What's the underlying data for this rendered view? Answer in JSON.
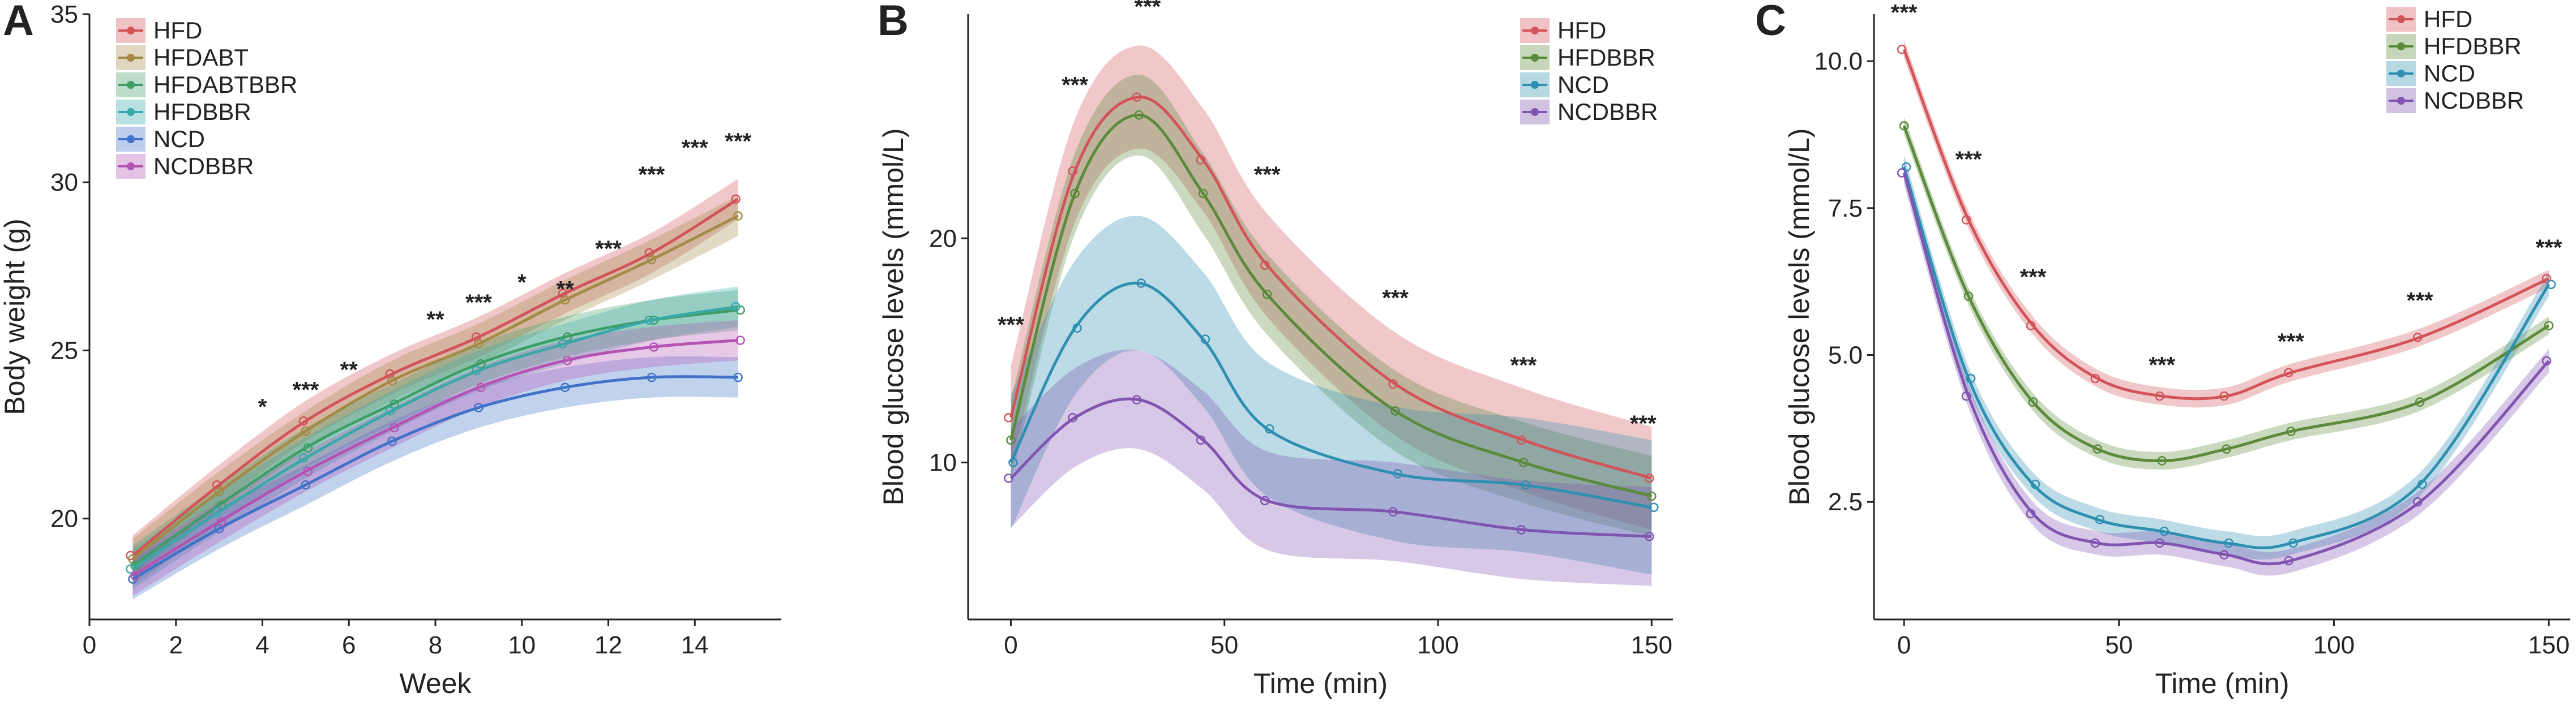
{
  "colors": {
    "HFD": "#d2545a",
    "HFDABT": "#a28b47",
    "HFDABTBBR": "#3f9e68",
    "HFDBBR": "#5a8a3a",
    "HFDBBR_A": "#3aa8a8",
    "NCD": "#2f8fb0",
    "NCD_A": "#3f72c8",
    "NCDBBR": "#8054b0",
    "NCDBBR_A": "#b553b5"
  },
  "chart_data": [
    {
      "panel": "A",
      "type": "line",
      "xlabel": "Week",
      "ylabel": "Body weight (g)",
      "xlim": [
        0,
        16
      ],
      "ylim": [
        17,
        35
      ],
      "xticks": [
        0,
        2,
        4,
        6,
        8,
        10,
        12,
        14
      ],
      "yticks": [
        20,
        25,
        30,
        35
      ],
      "legend_position": "top-left",
      "x": [
        1,
        3,
        5,
        7,
        9,
        11,
        13,
        15
      ],
      "series": [
        {
          "name": "HFD",
          "color_key": "HFD",
          "values": [
            18.9,
            21.0,
            22.9,
            24.3,
            25.4,
            26.7,
            27.9,
            29.5
          ],
          "band": 0.6
        },
        {
          "name": "HFDABT",
          "color_key": "HFDABT",
          "values": [
            18.8,
            20.8,
            22.6,
            24.1,
            25.2,
            26.5,
            27.7,
            29.0
          ],
          "band": 0.6
        },
        {
          "name": "HFDABTBBR",
          "color_key": "HFDABTBBR",
          "values": [
            18.6,
            20.4,
            22.1,
            23.4,
            24.6,
            25.4,
            25.9,
            26.2
          ],
          "band": 0.6
        },
        {
          "name": "HFDBBR",
          "color_key": "HFDBBR_A",
          "values": [
            18.5,
            20.2,
            21.8,
            23.2,
            24.4,
            25.2,
            25.9,
            26.3
          ],
          "band": 0.6
        },
        {
          "name": "NCD",
          "color_key": "NCD_A",
          "values": [
            18.2,
            19.7,
            21.0,
            22.3,
            23.3,
            23.9,
            24.2,
            24.2
          ],
          "band": 0.6
        },
        {
          "name": "NCDBBR",
          "color_key": "NCDBBR_A",
          "values": [
            18.3,
            19.9,
            21.4,
            22.7,
            23.9,
            24.7,
            25.1,
            25.3
          ],
          "band": 0.6
        }
      ],
      "annotations": [
        {
          "x": 4,
          "y": 23.1,
          "text": "*"
        },
        {
          "x": 5,
          "y": 23.6,
          "text": "***"
        },
        {
          "x": 6,
          "y": 24.2,
          "text": "**"
        },
        {
          "x": 8,
          "y": 25.7,
          "text": "**"
        },
        {
          "x": 9,
          "y": 26.2,
          "text": "***"
        },
        {
          "x": 10,
          "y": 26.8,
          "text": "*"
        },
        {
          "x": 11,
          "y": 26.6,
          "text": "**"
        },
        {
          "x": 12,
          "y": 27.8,
          "text": "***"
        },
        {
          "x": 13,
          "y": 30.0,
          "text": "***"
        },
        {
          "x": 14,
          "y": 30.8,
          "text": "***"
        },
        {
          "x": 15,
          "y": 31.0,
          "text": "***"
        }
      ]
    },
    {
      "panel": "B",
      "type": "line",
      "xlabel": "Time (min)",
      "ylabel": "Blood glucose levels (mmol/L)",
      "xlim": [
        -10,
        155
      ],
      "ylim": [
        3,
        30
      ],
      "xticks": [
        0,
        50,
        100,
        150
      ],
      "yticks": [
        10,
        20
      ],
      "legend_position": "top-right",
      "x": [
        0,
        15,
        30,
        45,
        60,
        90,
        120,
        150
      ],
      "series": [
        {
          "name": "HFD",
          "color_key": "HFD",
          "values": [
            12.0,
            23.0,
            26.3,
            23.5,
            18.8,
            13.5,
            11.0,
            9.3
          ],
          "band": 2.3
        },
        {
          "name": "HFDBBR",
          "color_key": "HFDBBR",
          "values": [
            11.0,
            22.0,
            25.5,
            22.0,
            17.5,
            12.3,
            10.0,
            8.5
          ],
          "band": 1.8
        },
        {
          "name": "NCD",
          "color_key": "NCD",
          "values": [
            10.0,
            16.0,
            18.0,
            15.5,
            11.5,
            9.5,
            9.0,
            8.0
          ],
          "band": 3.0
        },
        {
          "name": "NCDBBR",
          "color_key": "NCDBBR",
          "values": [
            9.3,
            12.0,
            12.8,
            11.0,
            8.3,
            7.8,
            7.0,
            6.7
          ],
          "band": 2.2
        }
      ],
      "annotations": [
        {
          "x": 0,
          "y": 15.8,
          "text": "***"
        },
        {
          "x": 15,
          "y": 26.5,
          "text": "***"
        },
        {
          "x": 32,
          "y": 30.0,
          "text": "***"
        },
        {
          "x": 60,
          "y": 22.5,
          "text": "***"
        },
        {
          "x": 90,
          "y": 17.0,
          "text": "***"
        },
        {
          "x": 120,
          "y": 14.0,
          "text": "***"
        },
        {
          "x": 148,
          "y": 11.4,
          "text": "***"
        }
      ]
    },
    {
      "panel": "C",
      "type": "line",
      "xlabel": "Time (min)",
      "ylabel": "Blood glucose levels (mmol/L)",
      "xlim": [
        -7,
        155
      ],
      "ylim": [
        0.5,
        10.8
      ],
      "xticks": [
        0,
        50,
        100,
        150
      ],
      "yticks": [
        2.5,
        5.0,
        7.5,
        10.0
      ],
      "legend_position": "top-right",
      "x": [
        0,
        15,
        30,
        45,
        60,
        75,
        90,
        120,
        150
      ],
      "series": [
        {
          "name": "HFD",
          "color_key": "HFD",
          "values": [
            10.2,
            7.3,
            5.5,
            4.6,
            4.3,
            4.3,
            4.7,
            5.3,
            6.3
          ],
          "band": 0.15
        },
        {
          "name": "HFDBBR",
          "color_key": "HFDBBR",
          "values": [
            8.9,
            6.0,
            4.2,
            3.4,
            3.2,
            3.4,
            3.7,
            4.2,
            5.5
          ],
          "band": 0.15
        },
        {
          "name": "NCD",
          "color_key": "NCD",
          "values": [
            8.2,
            4.6,
            2.8,
            2.2,
            2.0,
            1.8,
            1.8,
            2.8,
            6.2
          ],
          "band": 0.2
        },
        {
          "name": "NCDBBR",
          "color_key": "NCDBBR",
          "values": [
            8.1,
            4.3,
            2.3,
            1.8,
            1.8,
            1.6,
            1.5,
            2.5,
            4.9
          ],
          "band": 0.2
        }
      ],
      "annotations": [
        {
          "x": 0,
          "y": 10.7,
          "text": "***"
        },
        {
          "x": 15,
          "y": 8.2,
          "text": "***"
        },
        {
          "x": 30,
          "y": 6.2,
          "text": "***"
        },
        {
          "x": 60,
          "y": 4.7,
          "text": "***"
        },
        {
          "x": 90,
          "y": 5.1,
          "text": "***"
        },
        {
          "x": 120,
          "y": 5.8,
          "text": "***"
        },
        {
          "x": 150,
          "y": 6.7,
          "text": "***"
        }
      ]
    }
  ]
}
